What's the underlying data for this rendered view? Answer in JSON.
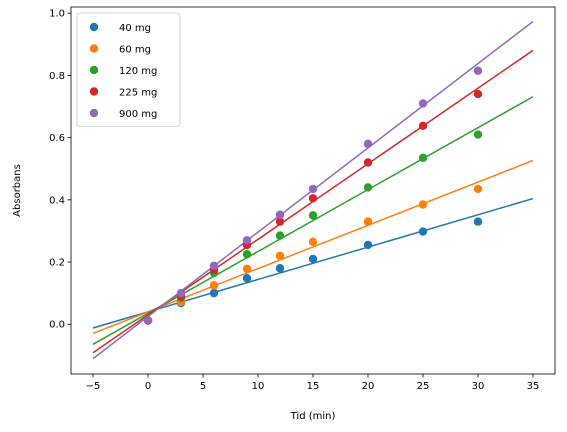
{
  "chart_data": {
    "type": "scatter",
    "title": "",
    "xlabel": "Tid (min)",
    "ylabel": "Absorbans",
    "xlim": [
      -7,
      37
    ],
    "ylim": [
      -0.16,
      1.02
    ],
    "xticks": [
      -5,
      0,
      5,
      10,
      15,
      20,
      25,
      30,
      35
    ],
    "xtick_labels": [
      "−5",
      "0",
      "5",
      "10",
      "15",
      "20",
      "25",
      "30",
      "35"
    ],
    "yticks": [
      0.0,
      0.2,
      0.4,
      0.6,
      0.8,
      1.0
    ],
    "ytick_labels": [
      "0.0",
      "0.2",
      "0.4",
      "0.6",
      "0.8",
      "1.0"
    ],
    "grid": false,
    "legend_position": "top-left",
    "fit_line_x_range": [
      -5,
      35
    ],
    "series": [
      {
        "name": "40 mg",
        "color": "#1f77b4",
        "x": [
          0,
          3,
          6,
          9,
          12,
          15,
          20,
          25,
          30
        ],
        "y": [
          0.012,
          0.068,
          0.1,
          0.148,
          0.18,
          0.21,
          0.255,
          0.298,
          0.33
        ],
        "fit": {
          "slope": 0.0104,
          "intercept": 0.04
        }
      },
      {
        "name": "60 mg",
        "color": "#ff7f0e",
        "x": [
          0,
          3,
          6,
          9,
          12,
          15,
          20,
          25,
          30
        ],
        "y": [
          0.012,
          0.072,
          0.125,
          0.178,
          0.22,
          0.265,
          0.33,
          0.385,
          0.435
        ],
        "fit": {
          "slope": 0.0139,
          "intercept": 0.04
        }
      },
      {
        "name": "120 mg",
        "color": "#2ca02c",
        "x": [
          0,
          3,
          6,
          9,
          12,
          15,
          20,
          25,
          30
        ],
        "y": [
          0.012,
          0.085,
          0.165,
          0.225,
          0.285,
          0.35,
          0.44,
          0.535,
          0.61
        ],
        "fit": {
          "slope": 0.0199,
          "intercept": 0.035
        }
      },
      {
        "name": "225 mg",
        "color": "#d62728",
        "x": [
          0,
          3,
          6,
          9,
          12,
          15,
          20,
          25,
          30
        ],
        "y": [
          0.012,
          0.09,
          0.175,
          0.255,
          0.33,
          0.405,
          0.52,
          0.638,
          0.74
        ],
        "fit": {
          "slope": 0.0243,
          "intercept": 0.03
        }
      },
      {
        "name": "900 mg",
        "color": "#9467bd",
        "x": [
          0,
          3,
          6,
          9,
          12,
          15,
          20,
          25,
          30
        ],
        "y": [
          0.012,
          0.1,
          0.188,
          0.27,
          0.352,
          0.435,
          0.58,
          0.71,
          0.815
        ],
        "fit": {
          "slope": 0.0271,
          "intercept": 0.025
        }
      }
    ]
  }
}
